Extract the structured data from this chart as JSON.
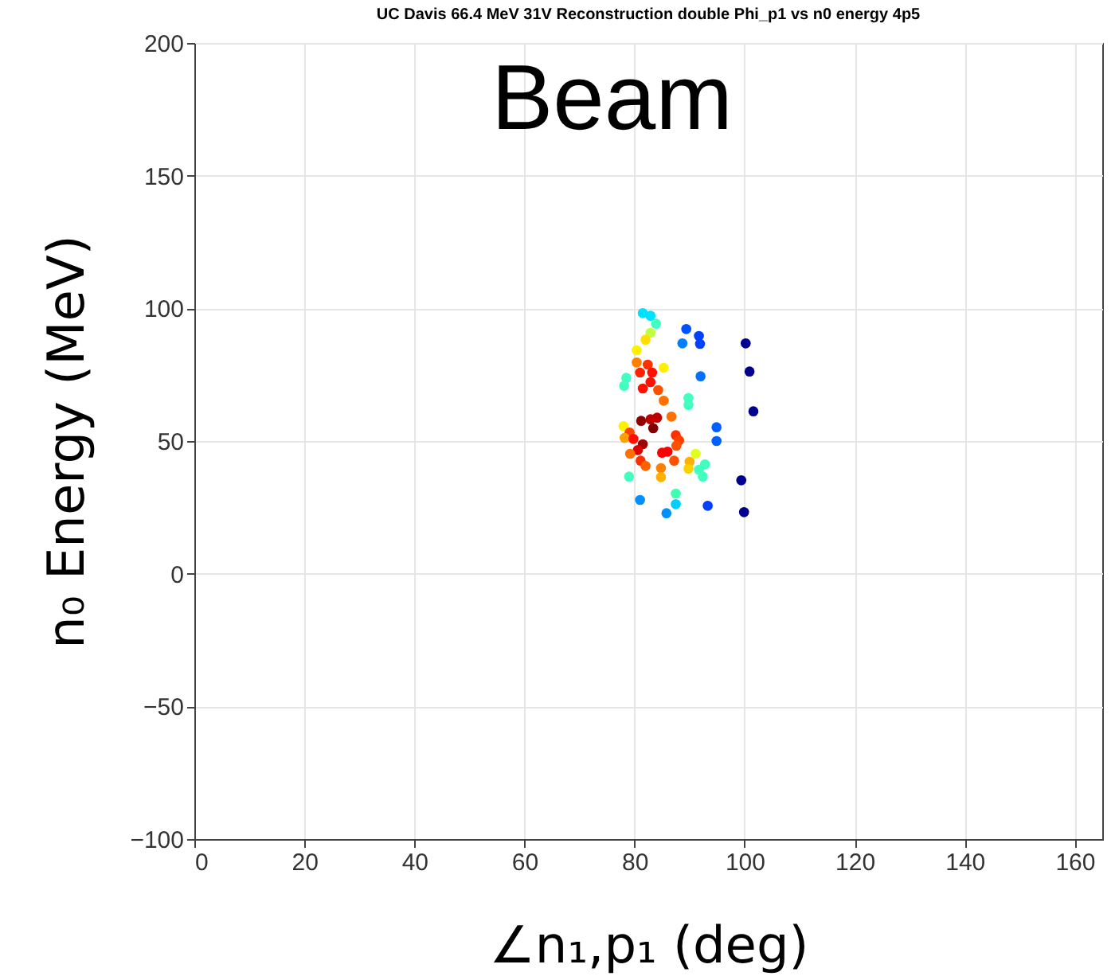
{
  "chart_data": {
    "type": "scatter",
    "title": "UC Davis 66.4 MeV 31V Reconstruction double Phi_p1 vs n0 energy  4p5",
    "xlabel": "∠n₁,p₁ (deg)",
    "ylabel": "n₀ Energy (MeV)",
    "annotations": [
      "Beam"
    ],
    "xlim": [
      0,
      165
    ],
    "ylim": [
      -100,
      200
    ],
    "xticks": [
      0,
      20,
      40,
      60,
      80,
      100,
      120,
      140,
      160
    ],
    "yticks": [
      -100,
      -50,
      0,
      50,
      100,
      150,
      200
    ],
    "grid": true,
    "marker": "circle",
    "x": [
      81.5,
      82.9,
      83.9,
      82.9,
      82.0,
      80.4,
      80.4,
      82.4,
      81.0,
      83.2,
      85.3,
      78.5,
      78.1,
      82.9,
      81.5,
      84.3,
      85.3,
      89.8,
      89.8,
      89.4,
      91.7,
      91.9,
      88.7,
      100.2,
      100.9,
      101.6,
      92.0,
      81.2,
      82.9,
      84.1,
      83.4,
      86.7,
      78.0,
      79.1,
      78.2,
      79.8,
      81.5,
      80.6,
      87.5,
      88.1,
      87.6,
      79.2,
      85.0,
      86.0,
      81.1,
      82.0,
      87.2,
      84.8,
      84.8,
      90.0,
      91.1,
      89.8,
      91.7,
      92.8,
      92.4,
      79.0,
      94.9,
      94.9,
      99.4,
      99.9,
      87.5,
      87.5,
      81.0,
      85.8,
      93.3
    ],
    "values": [
      98.2,
      97.2,
      94.2,
      90.8,
      88.2,
      84.2,
      79.6,
      78.8,
      75.8,
      75.8,
      77.6,
      73.8,
      70.8,
      72.2,
      69.8,
      69.2,
      65.2,
      66.2,
      63.6,
      92.2,
      89.6,
      86.6,
      86.8,
      86.8,
      76.2,
      61.2,
      74.4,
      57.6,
      58.2,
      58.8,
      54.8,
      59.2,
      55.6,
      53.2,
      51.2,
      50.8,
      48.8,
      46.6,
      52.2,
      50.2,
      48.2,
      45.2,
      45.6,
      46.0,
      42.6,
      40.6,
      42.6,
      39.8,
      36.4,
      42.2,
      45.2,
      39.6,
      39.2,
      41.2,
      36.6,
      36.6,
      55.2,
      50.0,
      35.2,
      23.2,
      30.2,
      26.2,
      27.8,
      22.8,
      25.6
    ],
    "colors": [
      "#00e0ff",
      "#00e0ff",
      "#40ffbf",
      "#bfff40",
      "#ffdf00",
      "#ffef00",
      "#ff8000",
      "#ff3000",
      "#ff2000",
      "#ff1000",
      "#ffef00",
      "#40ffbf",
      "#40ffbf",
      "#ff1000",
      "#ff1000",
      "#ff5000",
      "#ff7000",
      "#40ffbf",
      "#40ffbf",
      "#0050ff",
      "#0040ff",
      "#0040ff",
      "#0080ff",
      "#000090",
      "#000090",
      "#000090",
      "#0070ff",
      "#900000",
      "#c00000",
      "#c00000",
      "#800000",
      "#ff7000",
      "#ffef00",
      "#ff4000",
      "#ffa000",
      "#ff1000",
      "#a00000",
      "#e00000",
      "#ff3000",
      "#ff4000",
      "#ff5000",
      "#ff7000",
      "#ff0000",
      "#ff0000",
      "#ff3000",
      "#ff6000",
      "#ff5000",
      "#ff8000",
      "#ffb000",
      "#ffb000",
      "#dfff20",
      "#ffd000",
      "#40ffbf",
      "#40ffbf",
      "#40ffbf",
      "#40ffbf",
      "#0060ff",
      "#0060ff",
      "#000090",
      "#000090",
      "#40ffb0",
      "#00d0ff",
      "#0090ff",
      "#0090ff",
      "#0040ff"
    ]
  }
}
